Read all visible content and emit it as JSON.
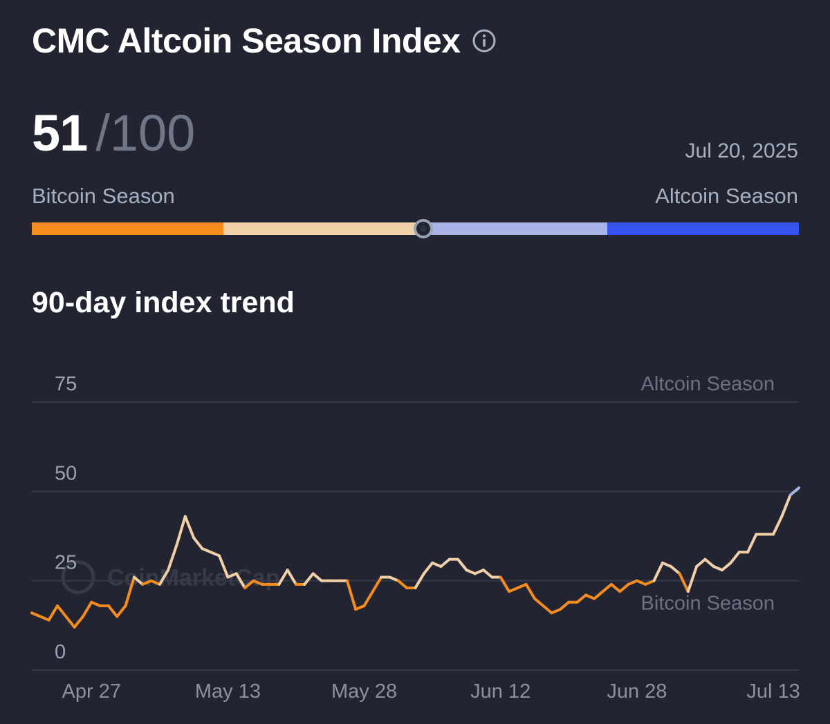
{
  "header": {
    "title": "CMC Altcoin Season Index",
    "info_icon": "info-circle-icon"
  },
  "score": {
    "value": "51",
    "max": "/100",
    "date": "Jul 20, 2025",
    "position_fraction": 0.51
  },
  "gauge": {
    "left_label": "Bitcoin Season",
    "right_label": "Altcoin Season",
    "segment_colors": [
      "#f68b1e",
      "#f1cfa8",
      "#a8b4e8",
      "#3453f0"
    ]
  },
  "trend": {
    "title": "90-day index trend"
  },
  "chart_data": {
    "type": "line",
    "y_ticks": [
      "0",
      "25",
      "50",
      "75"
    ],
    "ylim": [
      0,
      75
    ],
    "x_tick_labels": [
      "Apr 27",
      "May 13",
      "May 28",
      "Jun 12",
      "Jun 28",
      "Jul 13"
    ],
    "x_tick_index": [
      7,
      23,
      39,
      55,
      71,
      87
    ],
    "zone_labels": {
      "top": "Altcoin Season",
      "bottom": "Bitcoin Season"
    },
    "watermark": "CoinMarketCap",
    "grid": true,
    "colors": {
      "low": "#f68b1e",
      "high": "#f1cfa8",
      "latest": "#a8b4e8"
    },
    "color_threshold": 25,
    "series": [
      {
        "values": [
          16,
          15,
          14,
          18,
          15,
          12,
          15,
          19,
          18,
          18,
          15,
          18,
          26,
          24,
          25,
          24,
          28,
          35,
          43,
          37,
          34,
          33,
          32,
          26,
          27,
          23,
          25,
          24,
          24,
          24,
          28,
          24,
          24,
          27,
          25,
          25,
          25,
          25,
          17,
          18,
          22,
          26,
          26,
          25,
          23,
          23,
          27,
          30,
          29,
          31,
          31,
          28,
          27,
          28,
          26,
          26,
          22,
          23,
          24,
          20,
          18,
          16,
          17,
          19,
          19,
          21,
          20,
          22,
          24,
          22,
          24,
          25,
          24,
          25,
          30,
          29,
          27,
          22,
          29,
          31,
          29,
          28,
          30,
          33,
          33,
          38,
          38,
          38,
          43,
          49,
          51
        ]
      }
    ]
  }
}
